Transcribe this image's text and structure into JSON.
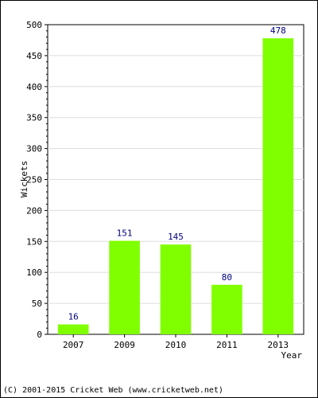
{
  "chart_data": {
    "type": "bar",
    "categories": [
      "2007",
      "2009",
      "2010",
      "2011",
      "2013"
    ],
    "values": [
      16,
      151,
      145,
      80,
      478
    ],
    "data_labels": [
      "16",
      "151",
      "145",
      "80",
      "478"
    ],
    "xlabel": "Year",
    "ylabel": "Wickets",
    "ylim": [
      0,
      500
    ],
    "yticks": [
      "0",
      "50",
      "100",
      "150",
      "200",
      "250",
      "300",
      "350",
      "400",
      "450",
      "500"
    ],
    "grid": true,
    "bar_color": "#80ff00",
    "label_color": "#000080"
  },
  "footer": "(C) 2001-2015 Cricket Web (www.cricketweb.net)"
}
